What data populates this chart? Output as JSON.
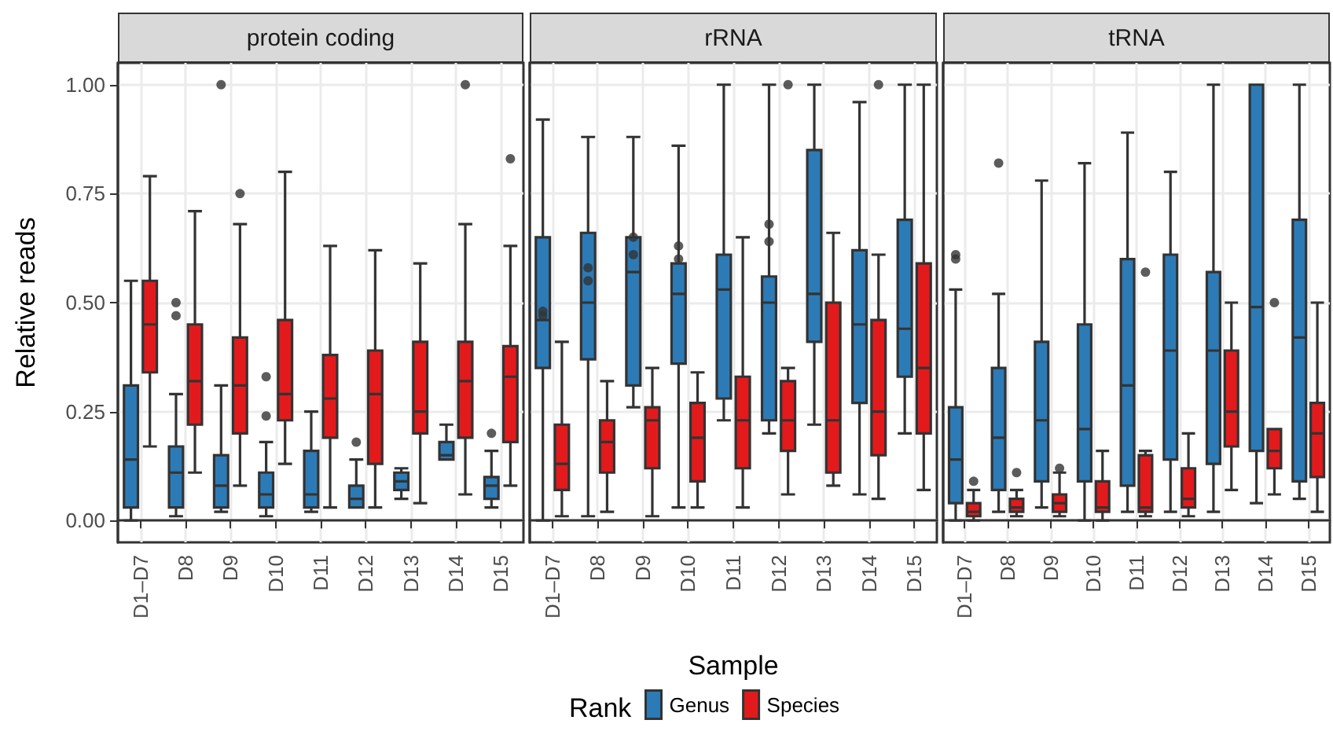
{
  "chart_data": [
    {
      "type": "box",
      "title": "protein coding",
      "ylabel": "Relative reads",
      "categories": [
        "D1–D7",
        "D8",
        "D9",
        "D10",
        "D11",
        "D12",
        "D13",
        "D14",
        "D15"
      ],
      "ylim": [
        -0.05,
        1.05
      ],
      "yticks": [
        {
          "value": 0,
          "label": "0.00"
        },
        {
          "value": 0.25,
          "label": "0.25"
        },
        {
          "value": 0.5,
          "label": "0.50"
        },
        {
          "value": 0.75,
          "label": "0.75"
        },
        {
          "value": 1,
          "label": "1.00"
        }
      ],
      "grid": true,
      "legend": false,
      "series": [
        {
          "color": "#2c7bb6",
          "boxes": [
            {
              "low": 0.0,
              "q1": 0.03,
              "median": 0.14,
              "q3": 0.31,
              "high": 0.55
            },
            {
              "low": 0.01,
              "q1": 0.03,
              "median": 0.11,
              "q3": 0.17,
              "high": 0.29,
              "outliers": [
                0.5,
                0.47
              ]
            },
            {
              "low": 0.02,
              "q1": 0.03,
              "median": 0.08,
              "q3": 0.15,
              "high": 0.31,
              "outliers": [
                1.0
              ]
            },
            {
              "low": 0.01,
              "q1": 0.03,
              "median": 0.06,
              "q3": 0.11,
              "high": 0.18,
              "outliers": [
                0.33,
                0.24
              ]
            },
            {
              "low": 0.02,
              "q1": 0.03,
              "median": 0.06,
              "q3": 0.16,
              "high": 0.25
            },
            {
              "low": 0.03,
              "q1": 0.03,
              "median": 0.05,
              "q3": 0.08,
              "high": 0.14,
              "outliers": [
                0.18
              ]
            },
            {
              "low": 0.05,
              "q1": 0.07,
              "median": 0.09,
              "q3": 0.11,
              "high": 0.12
            },
            {
              "low": 0.14,
              "q1": 0.14,
              "median": 0.15,
              "q3": 0.18,
              "high": 0.22
            },
            {
              "low": 0.03,
              "q1": 0.05,
              "median": 0.08,
              "q3": 0.1,
              "high": 0.16,
              "outliers": [
                0.2
              ]
            }
          ]
        },
        {
          "color": "#e31a1c",
          "boxes": [
            {
              "low": 0.17,
              "q1": 0.34,
              "median": 0.45,
              "q3": 0.55,
              "high": 0.79
            },
            {
              "low": 0.11,
              "q1": 0.22,
              "median": 0.32,
              "q3": 0.45,
              "high": 0.71
            },
            {
              "low": 0.08,
              "q1": 0.2,
              "median": 0.31,
              "q3": 0.42,
              "high": 0.68,
              "outliers": [
                0.75
              ]
            },
            {
              "low": 0.13,
              "q1": 0.23,
              "median": 0.29,
              "q3": 0.46,
              "high": 0.8
            },
            {
              "low": 0.03,
              "q1": 0.19,
              "median": 0.28,
              "q3": 0.38,
              "high": 0.63
            },
            {
              "low": 0.03,
              "q1": 0.13,
              "median": 0.29,
              "q3": 0.39,
              "high": 0.62
            },
            {
              "low": 0.04,
              "q1": 0.2,
              "median": 0.25,
              "q3": 0.41,
              "high": 0.59
            },
            {
              "low": 0.06,
              "q1": 0.19,
              "median": 0.32,
              "q3": 0.41,
              "high": 0.68,
              "outliers": [
                1.0
              ]
            },
            {
              "low": 0.08,
              "q1": 0.18,
              "median": 0.33,
              "q3": 0.4,
              "high": 0.63,
              "outliers": [
                0.83
              ]
            }
          ]
        }
      ]
    },
    {
      "type": "box",
      "title": "rRNA",
      "xlabel": "Sample",
      "legend_title": "Rank",
      "categories": [
        "D1–D7",
        "D8",
        "D9",
        "D10",
        "D11",
        "D12",
        "D13",
        "D14",
        "D15"
      ],
      "ylim": [
        -0.05,
        1.05
      ],
      "yticks": [
        0,
        0.25,
        0.5,
        0.75,
        1
      ],
      "grid": true,
      "legend": "bottom",
      "tick_labels": "x",
      "series": [
        {
          "name": "Genus",
          "color": "#2c7bb6",
          "boxes": [
            {
              "low": 0.0,
              "q1": 0.35,
              "median": 0.46,
              "q3": 0.65,
              "high": 0.92,
              "outliers": [
                0.47,
                0.48
              ]
            },
            {
              "low": 0.01,
              "q1": 0.37,
              "median": 0.5,
              "q3": 0.66,
              "high": 0.88,
              "outliers": [
                0.58,
                0.55
              ]
            },
            {
              "low": 0.26,
              "q1": 0.31,
              "median": 0.57,
              "q3": 0.65,
              "high": 0.88,
              "outliers": [
                0.65,
                0.61
              ]
            },
            {
              "low": 0.03,
              "q1": 0.36,
              "median": 0.52,
              "q3": 0.59,
              "high": 0.86,
              "outliers": [
                0.63,
                0.6
              ]
            },
            {
              "low": 0.23,
              "q1": 0.28,
              "median": 0.53,
              "q3": 0.61,
              "high": 1.0
            },
            {
              "low": 0.2,
              "q1": 0.23,
              "median": 0.5,
              "q3": 0.56,
              "high": 1.0,
              "outliers": [
                0.68,
                0.64
              ]
            },
            {
              "low": 0.22,
              "q1": 0.41,
              "median": 0.52,
              "q3": 0.85,
              "high": 1.0
            },
            {
              "low": 0.06,
              "q1": 0.27,
              "median": 0.45,
              "q3": 0.62,
              "high": 0.96
            },
            {
              "low": 0.2,
              "q1": 0.33,
              "median": 0.44,
              "q3": 0.69,
              "high": 1.0
            }
          ]
        },
        {
          "name": "Species",
          "color": "#e31a1c",
          "boxes": [
            {
              "low": 0.01,
              "q1": 0.07,
              "median": 0.13,
              "q3": 0.22,
              "high": 0.41
            },
            {
              "low": 0.02,
              "q1": 0.11,
              "median": 0.18,
              "q3": 0.23,
              "high": 0.32
            },
            {
              "low": 0.01,
              "q1": 0.12,
              "median": 0.23,
              "q3": 0.26,
              "high": 0.35
            },
            {
              "low": 0.03,
              "q1": 0.09,
              "median": 0.19,
              "q3": 0.27,
              "high": 0.34
            },
            {
              "low": 0.03,
              "q1": 0.12,
              "median": 0.23,
              "q3": 0.33,
              "high": 0.65
            },
            {
              "low": 0.06,
              "q1": 0.16,
              "median": 0.23,
              "q3": 0.32,
              "high": 0.35,
              "outliers": [
                1.0
              ]
            },
            {
              "low": 0.08,
              "q1": 0.11,
              "median": 0.23,
              "q3": 0.5,
              "high": 0.66
            },
            {
              "low": 0.05,
              "q1": 0.15,
              "median": 0.25,
              "q3": 0.46,
              "high": 0.61,
              "outliers": [
                1.0
              ]
            },
            {
              "low": 0.07,
              "q1": 0.2,
              "median": 0.35,
              "q3": 0.59,
              "high": 1.0
            }
          ]
        }
      ]
    },
    {
      "type": "box",
      "title": "tRNA",
      "categories": [
        "D1–D7",
        "D8",
        "D9",
        "D10",
        "D11",
        "D12",
        "D13",
        "D14",
        "D15"
      ],
      "ylim": [
        -0.05,
        1.05
      ],
      "yticks": [
        0,
        0.25,
        0.5,
        0.75,
        1
      ],
      "grid": true,
      "legend": false,
      "tick_labels": "x",
      "series": [
        {
          "color": "#2c7bb6",
          "boxes": [
            {
              "low": 0.0,
              "q1": 0.04,
              "median": 0.14,
              "q3": 0.26,
              "high": 0.53,
              "outliers": [
                0.6,
                0.61
              ]
            },
            {
              "low": 0.02,
              "q1": 0.07,
              "median": 0.19,
              "q3": 0.35,
              "high": 0.52,
              "outliers": [
                0.82
              ]
            },
            {
              "low": 0.03,
              "q1": 0.09,
              "median": 0.23,
              "q3": 0.41,
              "high": 0.78
            },
            {
              "low": 0.0,
              "q1": 0.09,
              "median": 0.21,
              "q3": 0.45,
              "high": 0.82
            },
            {
              "low": 0.02,
              "q1": 0.08,
              "median": 0.31,
              "q3": 0.6,
              "high": 0.89
            },
            {
              "low": 0.02,
              "q1": 0.14,
              "median": 0.39,
              "q3": 0.61,
              "high": 0.8
            },
            {
              "low": 0.02,
              "q1": 0.13,
              "median": 0.39,
              "q3": 0.57,
              "high": 1.0
            },
            {
              "low": 0.04,
              "q1": 0.16,
              "median": 0.49,
              "q3": 1.0,
              "high": 1.0
            },
            {
              "low": 0.05,
              "q1": 0.09,
              "median": 0.42,
              "q3": 0.69,
              "high": 1.0
            }
          ]
        },
        {
          "color": "#e31a1c",
          "boxes": [
            {
              "low": 0.0,
              "q1": 0.01,
              "median": 0.02,
              "q3": 0.04,
              "high": 0.07,
              "outliers": [
                0.09
              ]
            },
            {
              "low": 0.01,
              "q1": 0.02,
              "median": 0.03,
              "q3": 0.05,
              "high": 0.07,
              "outliers": [
                0.11
              ]
            },
            {
              "low": 0.01,
              "q1": 0.02,
              "median": 0.04,
              "q3": 0.06,
              "high": 0.11,
              "outliers": [
                0.12
              ]
            },
            {
              "low": 0.0,
              "q1": 0.02,
              "median": 0.03,
              "q3": 0.09,
              "high": 0.16
            },
            {
              "low": 0.01,
              "q1": 0.02,
              "median": 0.03,
              "q3": 0.15,
              "high": 0.16,
              "outliers": [
                0.57
              ]
            },
            {
              "low": 0.01,
              "q1": 0.03,
              "median": 0.05,
              "q3": 0.12,
              "high": 0.2
            },
            {
              "low": 0.07,
              "q1": 0.17,
              "median": 0.25,
              "q3": 0.39,
              "high": 0.5
            },
            {
              "low": 0.06,
              "q1": 0.12,
              "median": 0.16,
              "q3": 0.21,
              "high": 0.21,
              "outliers": [
                0.5
              ]
            },
            {
              "low": 0.02,
              "q1": 0.1,
              "median": 0.2,
              "q3": 0.27,
              "high": 0.5
            }
          ]
        }
      ]
    }
  ]
}
